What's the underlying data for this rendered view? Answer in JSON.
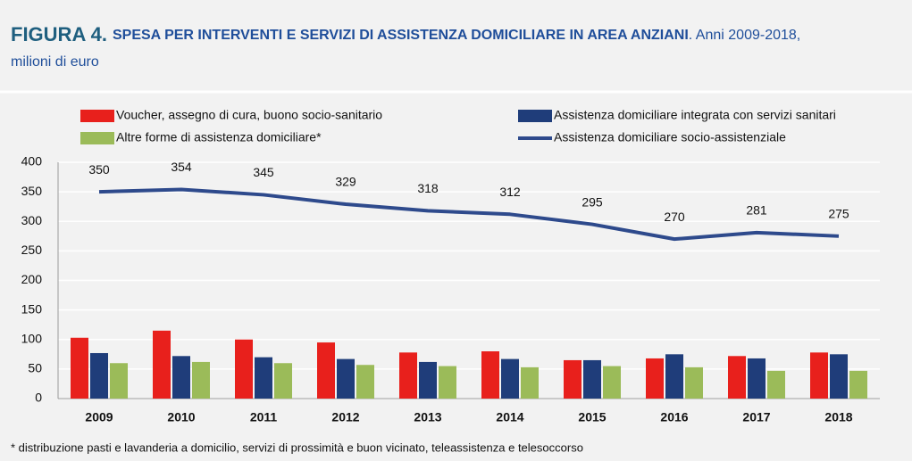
{
  "chart_data": {
    "type": "bar",
    "figure_label": "FIGURA 4.",
    "title": "SPESA PER INTERVENTI E SERVIZI DI ASSISTENZA DOMICILIARE IN AREA ANZIANI",
    "title_suffix": ". Anni 2009-2018,",
    "subtitle": "milioni di euro",
    "footnote": "* distribuzione pasti e lavanderia a domicilio, servizi di prossimità e buon vicinato, teleassistenza e telesoccorso",
    "categories": [
      "2009",
      "2010",
      "2011",
      "2012",
      "2013",
      "2014",
      "2015",
      "2016",
      "2017",
      "2018"
    ],
    "series": [
      {
        "name": "Voucher, assegno di cura, buono socio-sanitario",
        "color": "#e8201c",
        "values": [
          103,
          115,
          100,
          95,
          78,
          80,
          65,
          68,
          72,
          78
        ]
      },
      {
        "name": "Assistenza domiciliare integrata con servizi sanitari",
        "color": "#1f3d7a",
        "values": [
          77,
          72,
          70,
          67,
          62,
          67,
          65,
          75,
          68,
          75
        ]
      },
      {
        "name": "Altre forme di assistenza domiciliare*",
        "color": "#9bbb59",
        "values": [
          60,
          62,
          60,
          57,
          55,
          53,
          55,
          53,
          47,
          47
        ]
      },
      {
        "name": "Assistenza domiciliare socio-assistenziale",
        "color": "#2e4a8c",
        "type": "line",
        "values": [
          350,
          354,
          345,
          329,
          318,
          312,
          295,
          270,
          281,
          275
        ]
      }
    ],
    "ylim": [
      0,
      400
    ],
    "yticks": [
      0,
      50,
      100,
      150,
      200,
      250,
      300,
      350,
      400
    ],
    "grid": true
  }
}
